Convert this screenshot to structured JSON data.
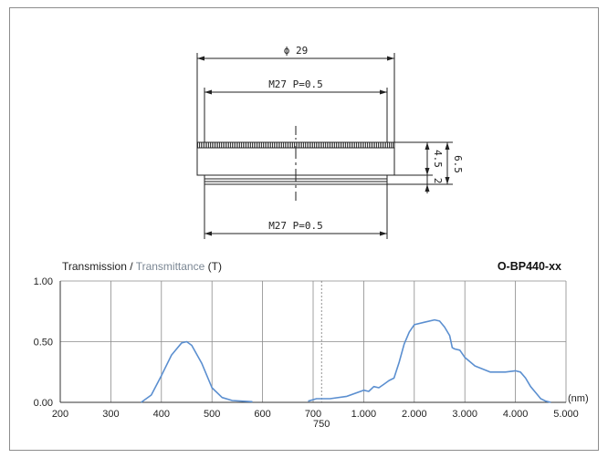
{
  "drawing": {
    "outer_diameter_label": "ϕ 29",
    "top_thread_label": "M27 P=0.5",
    "bottom_thread_label": "M27 P=0.5",
    "height_main_label": "4.5",
    "height_step_label": "2",
    "height_total_label": "6.5"
  },
  "chart_data": {
    "type": "line",
    "title": "Transmission / Transmittance (T)",
    "title_part1": "Transmission / ",
    "title_part2": "Transmittance",
    "title_part3": " (T)",
    "model": "O-BP440-xx",
    "x_unit": "(nm)",
    "y_ticks": [
      "1.00",
      "0.50",
      "0.00"
    ],
    "x_ticks": [
      "200",
      "300",
      "400",
      "500",
      "600",
      "700",
      "1.000",
      "2.000",
      "3.000",
      "4.000",
      "5.000"
    ],
    "x_break_label": "750",
    "x_tick_values": [
      200,
      300,
      400,
      500,
      600,
      700,
      1000,
      2000,
      3000,
      4000,
      5000
    ],
    "x_break": 750,
    "ylim": [
      0,
      1
    ],
    "grid": true,
    "colors": {
      "curve": "#5b8fd0",
      "grid": "#8a8a8a",
      "axis": "#333333"
    },
    "series": [
      {
        "x": [
          360,
          380,
          400,
          420,
          440,
          450,
          460,
          480,
          500,
          520,
          540,
          560,
          580,
          690,
          720,
          750,
          800,
          900,
          1000,
          1100,
          1200,
          1300,
          1400,
          1500,
          1600,
          1700,
          1800,
          1900,
          2000,
          2200,
          2400,
          2500,
          2600,
          2700,
          2750,
          2800,
          2900,
          3000,
          3200,
          3500,
          3800,
          4000,
          4100,
          4200,
          4300,
          4400,
          4500,
          4600,
          4700
        ],
        "y": [
          0.0,
          0.06,
          0.22,
          0.39,
          0.49,
          0.5,
          0.47,
          0.32,
          0.12,
          0.04,
          0.015,
          0.01,
          0.005,
          0.01,
          0.03,
          0.03,
          0.03,
          0.05,
          0.1,
          0.09,
          0.13,
          0.12,
          0.15,
          0.18,
          0.2,
          0.33,
          0.48,
          0.58,
          0.64,
          0.66,
          0.68,
          0.67,
          0.62,
          0.55,
          0.45,
          0.44,
          0.43,
          0.37,
          0.3,
          0.25,
          0.25,
          0.26,
          0.25,
          0.2,
          0.13,
          0.08,
          0.03,
          0.01,
          0.0
        ]
      }
    ]
  }
}
